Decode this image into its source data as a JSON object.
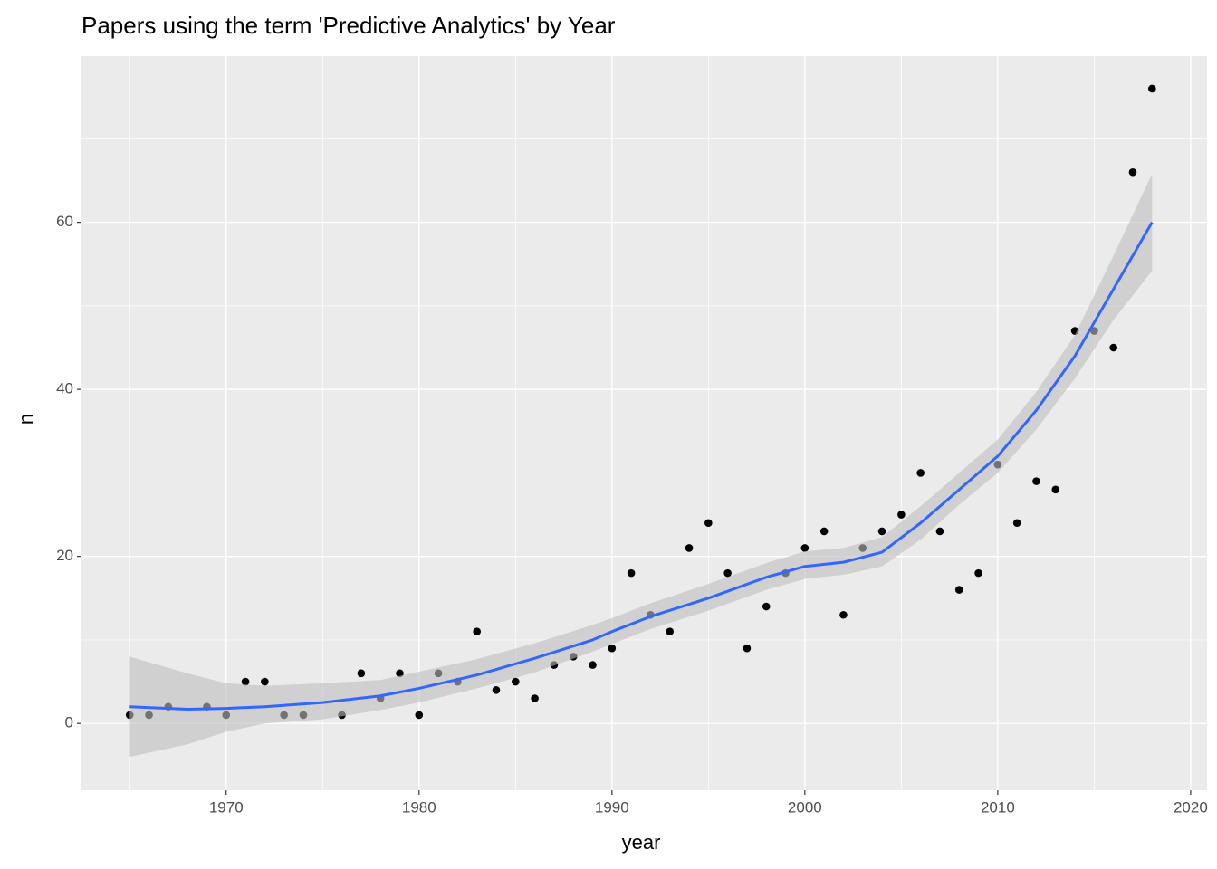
{
  "chart_data": {
    "type": "scatter",
    "title": "Papers using the term 'Predictive Analytics' by Year",
    "x_label": "year",
    "y_label": "n",
    "xlim": [
      1962.5,
      2020.85
    ],
    "ylim": [
      -8,
      79.9
    ],
    "xticks": [
      1970,
      1980,
      1990,
      2000,
      2010,
      2020
    ],
    "yticks": [
      0,
      20,
      40,
      60
    ],
    "xminor": [
      1965,
      1975,
      1985,
      1995,
      2005,
      2015
    ],
    "yminor": [
      10,
      30,
      50,
      70
    ],
    "grid": true,
    "panel_color": "#ebebeb",
    "points": {
      "color": "#000000",
      "x": [
        1965,
        1966,
        1967,
        1969,
        1970,
        1971,
        1972,
        1973,
        1974,
        1976,
        1977,
        1978,
        1979,
        1980,
        1981,
        1982,
        1983,
        1984,
        1985,
        1986,
        1987,
        1988,
        1989,
        1990,
        1991,
        1992,
        1993,
        1994,
        1995,
        1996,
        1997,
        1998,
        1999,
        2000,
        2001,
        2002,
        2003,
        2004,
        2005,
        2006,
        2007,
        2008,
        2009,
        2010,
        2011,
        2012,
        2013,
        2014,
        2015,
        2016,
        2017,
        2018
      ],
      "y": [
        1,
        1,
        2,
        2,
        1,
        5,
        5,
        1,
        1,
        1,
        6,
        3,
        6,
        1,
        6,
        5,
        11,
        4,
        5,
        3,
        7,
        8,
        7,
        9,
        18,
        13,
        11,
        21,
        24,
        18,
        9,
        14,
        18,
        21,
        23,
        13,
        21,
        23,
        25,
        30,
        23,
        16,
        18,
        31,
        24,
        29,
        28,
        47,
        47,
        45,
        66,
        76
      ]
    },
    "smooth": {
      "color": "#3366ff",
      "band_color": "#bebebe",
      "x": [
        1965,
        1968,
        1970,
        1972,
        1975,
        1978,
        1980,
        1983,
        1986,
        1989,
        1990,
        1992,
        1995,
        1998,
        2000,
        2002,
        2004,
        2006,
        2008,
        2010,
        2012,
        2014,
        2016,
        2018
      ],
      "y": [
        2,
        1.7,
        1.8,
        2.0,
        2.5,
        3.3,
        4.2,
        5.8,
        7.8,
        10.0,
        11,
        12.8,
        15,
        17.5,
        18.8,
        19.3,
        20.5,
        24,
        28,
        32,
        37.5,
        44,
        52,
        60
      ],
      "ymin": [
        -4,
        -2.5,
        -1,
        0,
        0.5,
        1.6,
        2.5,
        4.2,
        6.1,
        8.6,
        9.5,
        11.3,
        13.5,
        16,
        17.3,
        17.8,
        18.8,
        22,
        26.2,
        30,
        35.2,
        41.3,
        48.3,
        54.2
      ],
      "ymax": [
        8,
        6,
        4.8,
        4.5,
        4.8,
        5.2,
        6.2,
        7.7,
        9.6,
        11.8,
        12.6,
        14.4,
        16.7,
        19.2,
        20.6,
        21,
        22.3,
        26,
        30,
        34,
        39.7,
        46.5,
        56,
        65.8
      ]
    }
  }
}
